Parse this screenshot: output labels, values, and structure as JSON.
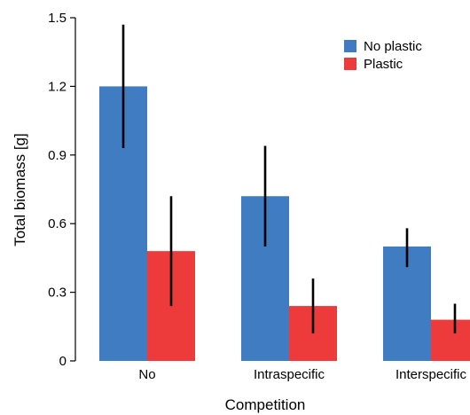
{
  "chart_data": {
    "type": "bar",
    "title": "",
    "xlabel": "Competition",
    "ylabel": "Total biomass [g]",
    "categories": [
      "No",
      "Intraspecific",
      "Interspecific"
    ],
    "ylim": [
      0,
      1.5
    ],
    "yticks": [
      0,
      0.3,
      0.6,
      0.9,
      1.2,
      1.5
    ],
    "ytick_labels": [
      "0",
      "0.3",
      "0.6",
      "0.9",
      "1.2",
      "1.5"
    ],
    "grid": false,
    "legend_position": "top-right",
    "series": [
      {
        "name": "No plastic",
        "color": "#3f7cc2",
        "values": [
          1.2,
          0.72,
          0.5
        ],
        "error_low": [
          0.93,
          0.5,
          0.41
        ],
        "error_high": [
          1.47,
          0.94,
          0.58
        ]
      },
      {
        "name": "Plastic",
        "color": "#ed3b3b",
        "values": [
          0.48,
          0.24,
          0.18
        ],
        "error_low": [
          0.24,
          0.12,
          0.12
        ],
        "error_high": [
          0.72,
          0.36,
          0.25
        ]
      }
    ]
  }
}
